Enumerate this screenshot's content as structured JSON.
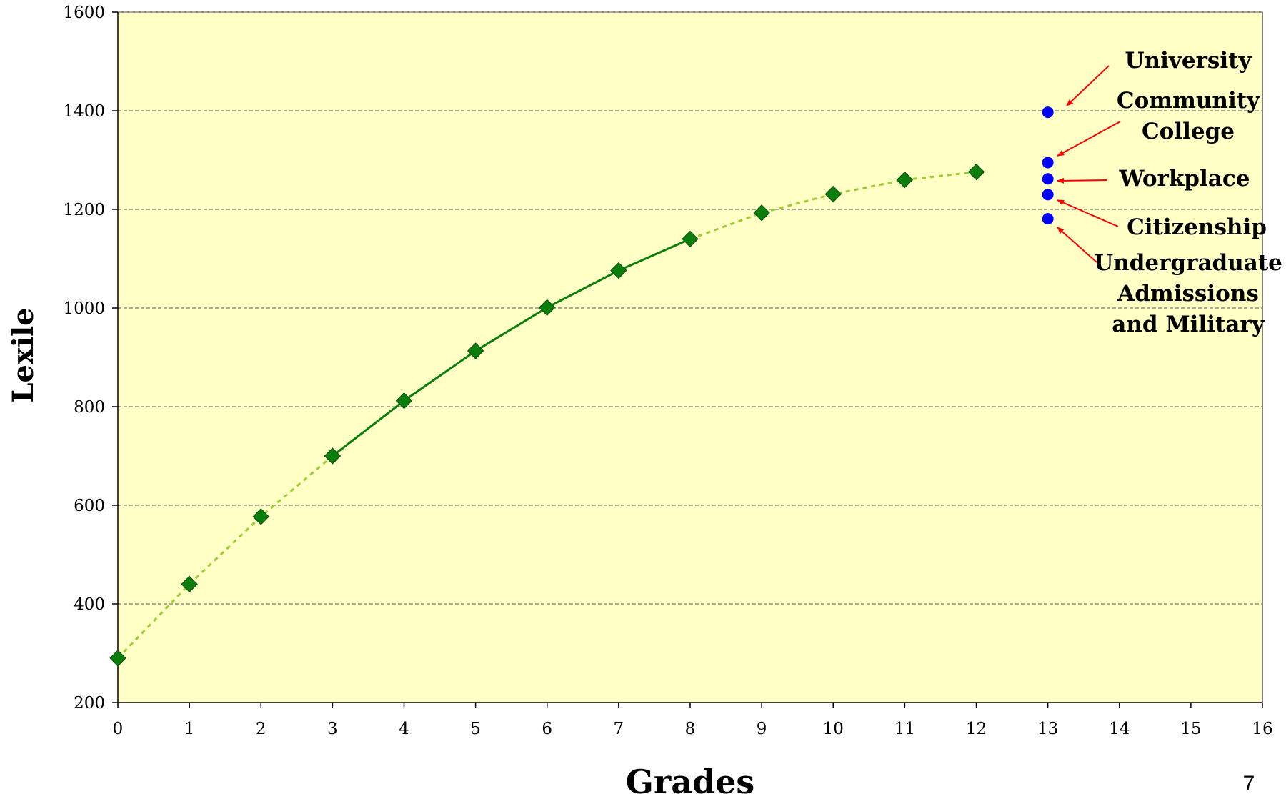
{
  "chart_data": {
    "type": "line",
    "xlabel": "Grades",
    "ylabel": "Lexile",
    "xlim": [
      0,
      16
    ],
    "ylim": [
      200,
      1600
    ],
    "x_ticks": [
      "0",
      "1",
      "2",
      "3",
      "4",
      "5",
      "6",
      "7",
      "8",
      "9",
      "10",
      "11",
      "12",
      "13",
      "14",
      "15",
      "16"
    ],
    "y_ticks": [
      "200",
      "400",
      "600",
      "800",
      "1000",
      "1200",
      "1400",
      "1600"
    ],
    "grid": "horizontal dashed",
    "colors": {
      "plot_background": "#ffffc6",
      "series_marker": "#0a7d0a",
      "solid_line": "#0a7d0a",
      "dashed_line": "#9acd32",
      "postsecondary_points": "#0000ff",
      "arrows": "#ff0000"
    },
    "series": [
      {
        "x": [
          0,
          1,
          2,
          3,
          4,
          5,
          6,
          7,
          8,
          9,
          10,
          11,
          12
        ],
        "values": [
          290,
          440,
          577,
          700,
          812,
          913,
          1001,
          1076,
          1140,
          1193,
          1231,
          1260,
          1276
        ],
        "marker": "diamond",
        "solid_segment_x": [
          3,
          8
        ],
        "dashed_segments_x": [
          [
            0,
            3
          ],
          [
            8,
            12
          ]
        ]
      },
      {
        "x": [
          13,
          13,
          13,
          13,
          13
        ],
        "values": [
          1397,
          1295,
          1262,
          1230,
          1181
        ],
        "marker": "circle"
      }
    ],
    "annotations": [
      {
        "lines": [
          "University"
        ],
        "target_y": 1397
      },
      {
        "lines": [
          "Community",
          "College"
        ],
        "target_y": 1295
      },
      {
        "lines": [
          "Workplace"
        ],
        "target_y": 1262
      },
      {
        "lines": [
          "Citizenship"
        ],
        "target_y": 1230
      },
      {
        "lines": [
          "Undergraduate",
          "Admissions",
          "and Military"
        ],
        "target_y": 1181
      }
    ]
  },
  "page_number": "7"
}
